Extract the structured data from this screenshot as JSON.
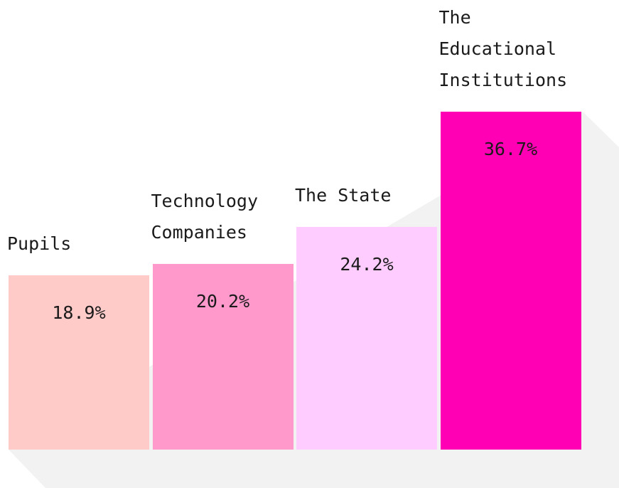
{
  "chart_data": {
    "type": "bar",
    "categories": [
      "Pupils",
      "Technology Companies",
      "The State",
      "The Educational Institutions"
    ],
    "values": [
      18.9,
      20.2,
      24.2,
      36.7
    ],
    "value_labels": [
      "18.9%",
      "20.2%",
      "24.2%",
      "36.7%"
    ],
    "colors": [
      "#ffcbc8",
      "#ff99cc",
      "#ffccff",
      "#ff00b4"
    ]
  }
}
